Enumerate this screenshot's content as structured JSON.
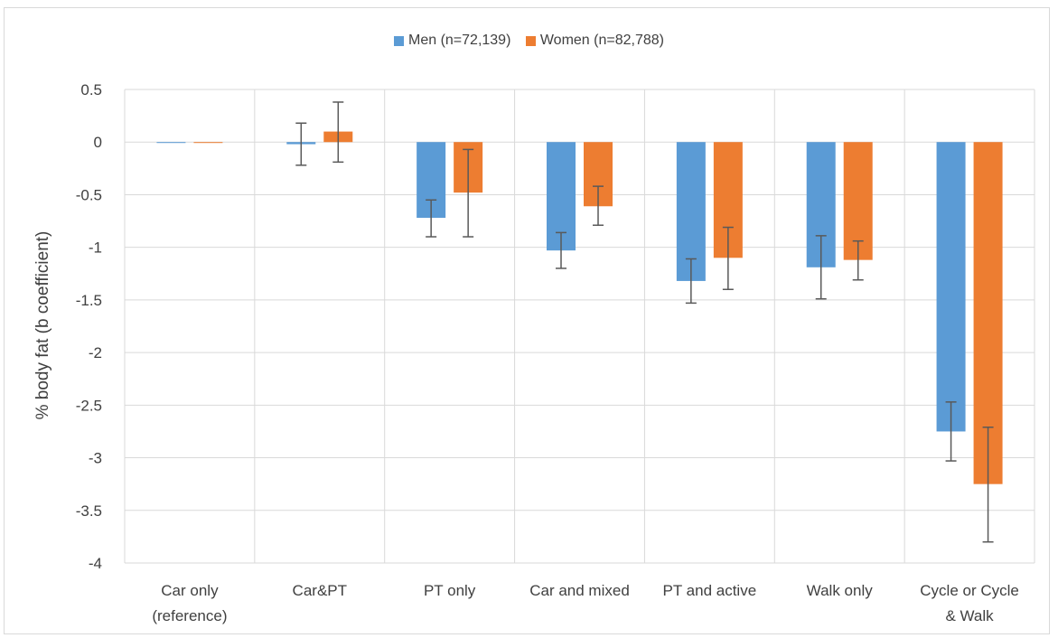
{
  "chart_data": {
    "type": "bar",
    "title": "",
    "xlabel": "",
    "ylabel": "% body fat (b coefficient)",
    "ylim": [
      -4,
      0.5
    ],
    "yticks": [
      0.5,
      0,
      -0.5,
      -1,
      -1.5,
      -2,
      -2.5,
      -3,
      -3.5,
      -4
    ],
    "ytick_labels": [
      "0.5",
      "0",
      "-0.5",
      "-1",
      "-1.5",
      "-2",
      "-2.5",
      "-3",
      "-3.5",
      "-4"
    ],
    "grid": "vertical category separators",
    "legend_position": "top-center",
    "categories": [
      [
        "Car only",
        "(reference)"
      ],
      [
        "Car&PT"
      ],
      [
        "PT only"
      ],
      [
        "Car and mixed"
      ],
      [
        "PT and active"
      ],
      [
        "Walk only"
      ],
      [
        "Cycle or Cycle",
        "& Walk"
      ]
    ],
    "series": [
      {
        "name": "Men (n=72,139)",
        "color": "#5b9bd5",
        "values": [
          0,
          -0.02,
          -0.72,
          -1.03,
          -1.32,
          -1.19,
          -2.75
        ],
        "err_low": [
          0,
          -0.22,
          -0.9,
          -1.2,
          -1.53,
          -1.49,
          -3.03
        ],
        "err_high": [
          0,
          0.18,
          -0.55,
          -0.86,
          -1.11,
          -0.89,
          -2.47
        ]
      },
      {
        "name": "Women (n=82,788)",
        "color": "#ed7d31",
        "values": [
          0,
          0.1,
          -0.48,
          -0.61,
          -1.1,
          -1.12,
          -3.25
        ],
        "err_low": [
          0,
          -0.19,
          -0.9,
          -0.79,
          -1.4,
          -1.31,
          -3.8
        ],
        "err_high": [
          0,
          0.38,
          -0.07,
          -0.42,
          -0.81,
          -0.94,
          -2.71
        ]
      }
    ]
  }
}
